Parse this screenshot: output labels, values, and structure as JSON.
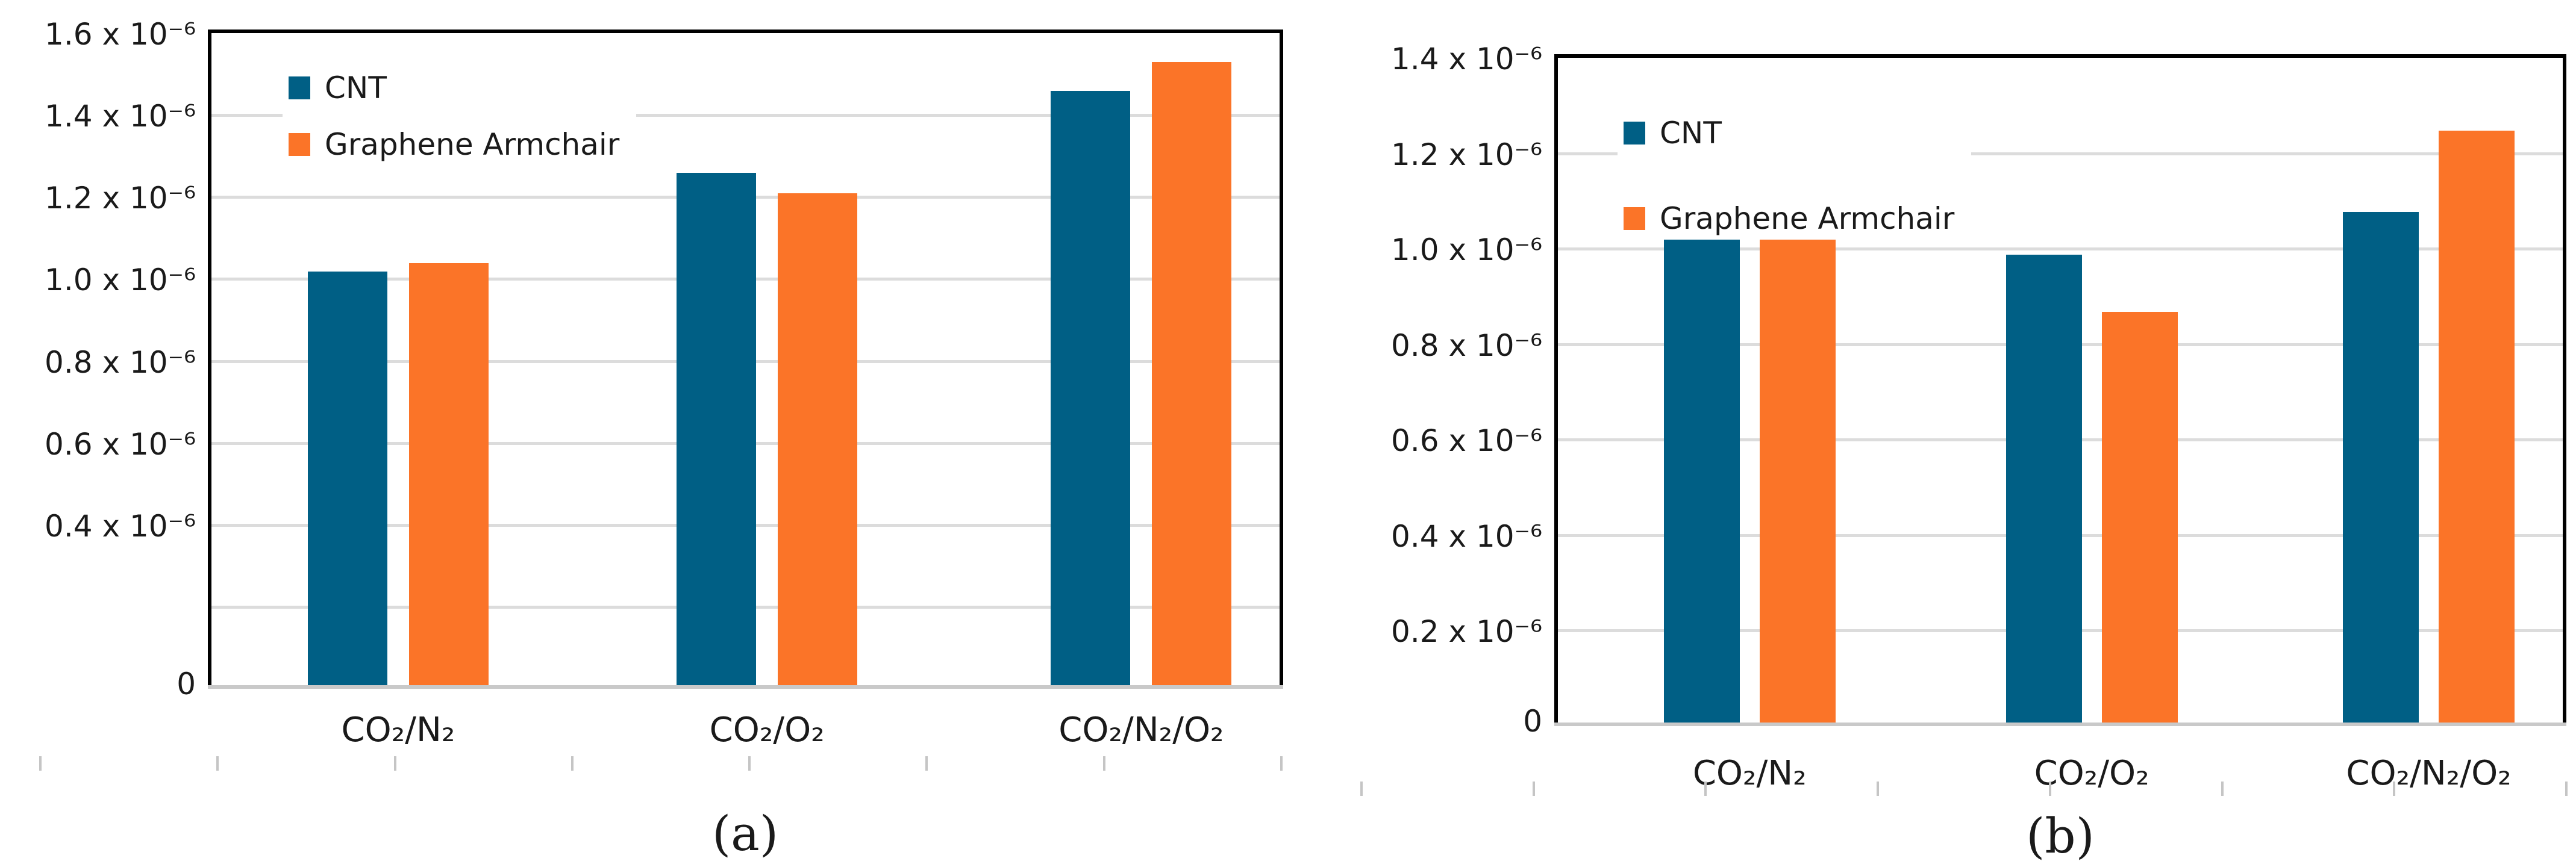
{
  "page": {
    "background_color": "#ffffff",
    "description_colors": {
      "cnt_series": "#005F85",
      "graphene_series": "#FB7428",
      "gridline": "#dcdcdc",
      "baseline": "#c9c9c9",
      "frame": "#000000"
    }
  },
  "chart_data": [
    {
      "type": "bar",
      "title": "(a)",
      "categories": [
        "CO₂/N₂",
        "CO₂/O₂",
        "CO₂/N₂/O₂"
      ],
      "series": [
        {
          "name": "CNT",
          "color": "#005F85",
          "values": [
            1.01,
            1.25,
            1.45
          ]
        },
        {
          "name": "Graphene Armchair",
          "color": "#FB7428",
          "values": [
            1.03,
            1.2,
            1.52
          ]
        }
      ],
      "value_scale": "x 10⁻⁶",
      "xlabel": "",
      "ylabel": "",
      "ylim": [
        0,
        1.6
      ],
      "grid": true,
      "legend_position": "top-left",
      "y_axis": {
        "max": 1.6,
        "step": 0.2,
        "labeled_tick_values": [
          1.6,
          1.4,
          1.2,
          1.0,
          0.8,
          0.6,
          0.4
        ],
        "tick_labels": [
          "1.6 x 10⁻⁶",
          "1.4 x 10⁻⁶",
          "1.2 x 10⁻⁶",
          "1.0 x 10⁻⁶",
          "0.8 x 10⁻⁶",
          "0.6 x 10⁻⁶",
          "0.4 x 10⁻⁶"
        ],
        "zero_label": "0"
      }
    },
    {
      "type": "bar",
      "title": "(b)",
      "categories": [
        "CO₂/N₂",
        "CO₂/O₂",
        "CO₂/N₂/O₂"
      ],
      "series": [
        {
          "name": "CNT",
          "color": "#005F85",
          "values": [
            1.05,
            0.98,
            1.07
          ]
        },
        {
          "name": "Graphene Armchair",
          "color": "#FB7428",
          "values": [
            1.07,
            0.86,
            1.24
          ]
        }
      ],
      "value_scale": "x 10⁻⁶",
      "xlabel": "",
      "ylabel": "",
      "ylim": [
        0,
        1.4
      ],
      "grid": true,
      "legend_position": "top-left",
      "y_axis": {
        "max": 1.4,
        "step": 0.2,
        "labeled_tick_values": [
          1.4,
          1.2,
          1.0,
          0.8,
          0.6,
          0.4,
          0.2
        ],
        "tick_labels": [
          "1.4 x 10⁻⁶",
          "1.2 x 10⁻⁶",
          "1.0 x 10⁻⁶",
          "0.8 x 10⁻⁶",
          "0.6 x 10⁻⁶",
          "0.4 x 10⁻⁶",
          "0.2 x 10⁻⁶"
        ],
        "zero_label": "0"
      }
    }
  ]
}
